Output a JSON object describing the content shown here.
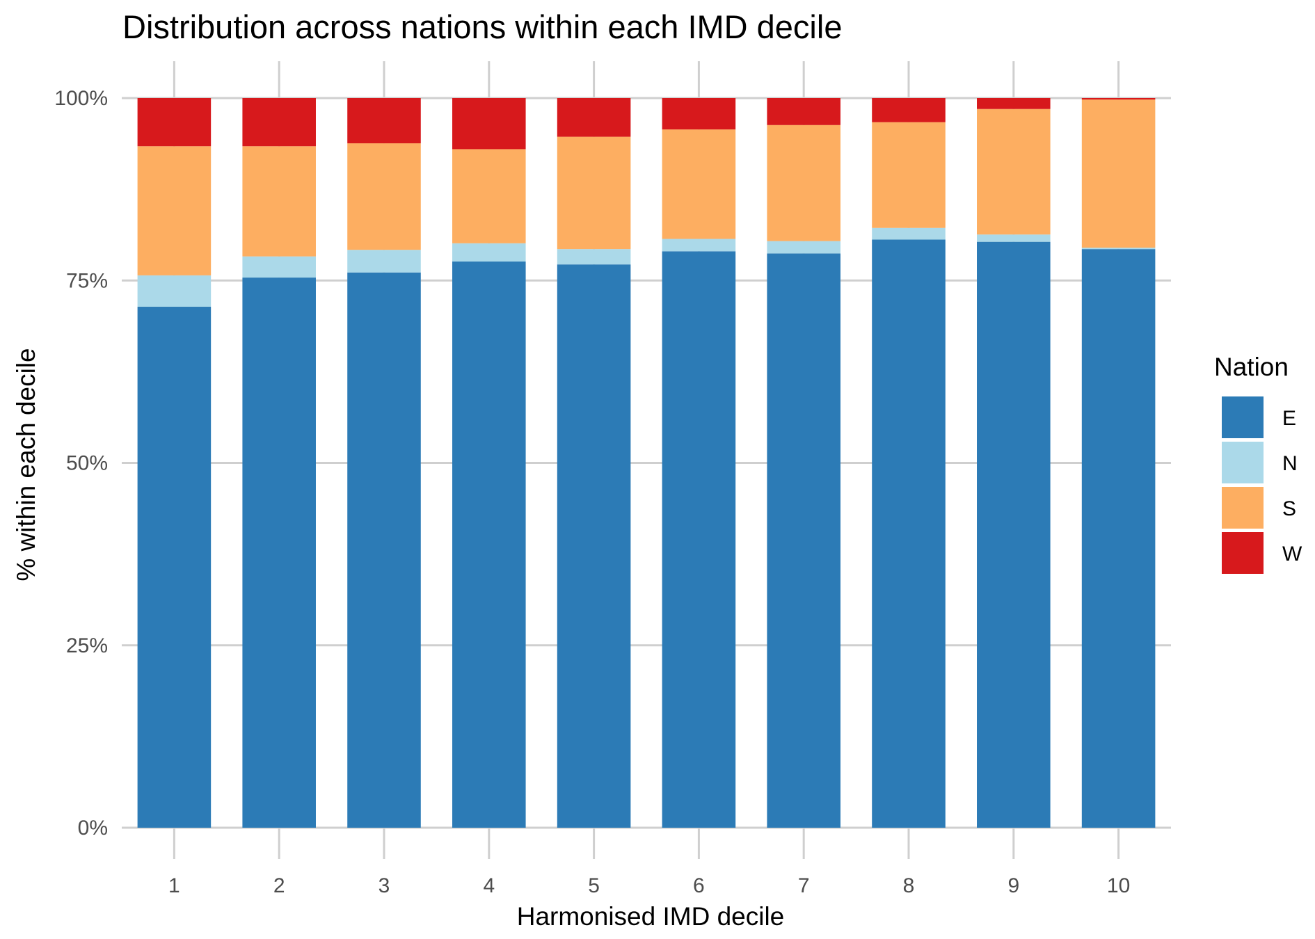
{
  "chart_data": {
    "type": "bar",
    "stacked": true,
    "title": "Distribution across nations within each IMD decile",
    "xlabel": "Harmonised IMD decile",
    "ylabel": "% within each decile",
    "ylim": [
      0,
      1
    ],
    "y_ticks": [
      {
        "value": 0,
        "label": "0%"
      },
      {
        "value": 0.25,
        "label": "25%"
      },
      {
        "value": 0.5,
        "label": "50%"
      },
      {
        "value": 0.75,
        "label": "75%"
      },
      {
        "value": 1,
        "label": "100%"
      }
    ],
    "categories": [
      "1",
      "2",
      "3",
      "4",
      "5",
      "6",
      "7",
      "8",
      "9",
      "10"
    ],
    "series": [
      {
        "name": "E",
        "color": "#2c7bb6",
        "values": [
          0.714,
          0.754,
          0.761,
          0.776,
          0.772,
          0.79,
          0.787,
          0.806,
          0.803,
          0.793
        ]
      },
      {
        "name": "N",
        "color": "#abd9e9",
        "values": [
          0.043,
          0.029,
          0.031,
          0.025,
          0.021,
          0.017,
          0.017,
          0.016,
          0.01,
          0.002
        ]
      },
      {
        "name": "S",
        "color": "#fdae61",
        "values": [
          0.177,
          0.151,
          0.146,
          0.129,
          0.154,
          0.15,
          0.159,
          0.145,
          0.172,
          0.203
        ]
      },
      {
        "name": "W",
        "color": "#d7191c",
        "values": [
          0.066,
          0.066,
          0.062,
          0.07,
          0.053,
          0.043,
          0.037,
          0.033,
          0.015,
          0.002
        ]
      }
    ],
    "legend": {
      "title": "Nation",
      "position": "right"
    },
    "grid": true
  }
}
